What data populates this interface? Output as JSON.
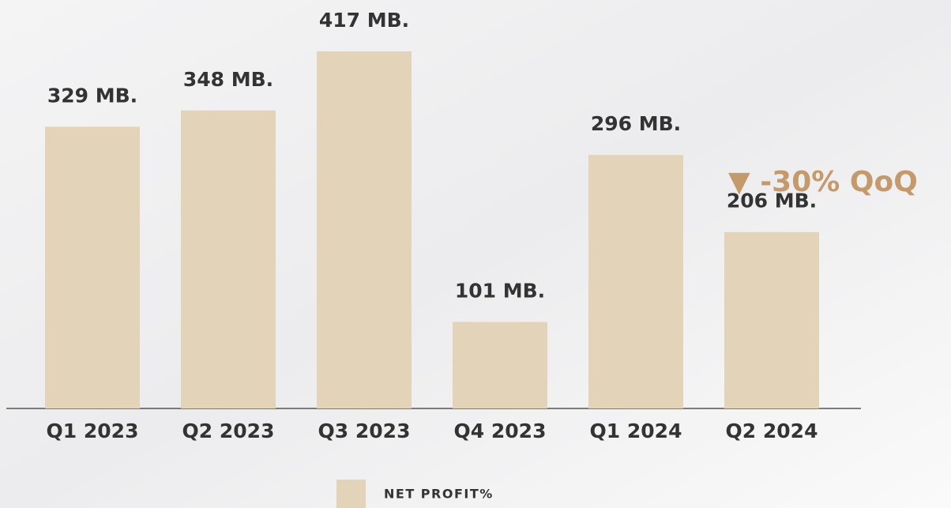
{
  "chart_data": {
    "type": "bar",
    "categories": [
      "Q1 2023",
      "Q2 2023",
      "Q3 2023",
      "Q4 2023",
      "Q1 2024",
      "Q2 2024"
    ],
    "series": [
      {
        "name": "NET PROFIT%",
        "color": "#e3d4b9",
        "values": [
          329,
          348,
          417,
          101,
          296,
          206
        ],
        "value_labels": [
          "329 MB.",
          "348 MB.",
          "417 MB.",
          "101 MB.",
          "296 MB.",
          "206 MB."
        ]
      }
    ],
    "annotation": "▼ -30% QoQ"
  }
}
